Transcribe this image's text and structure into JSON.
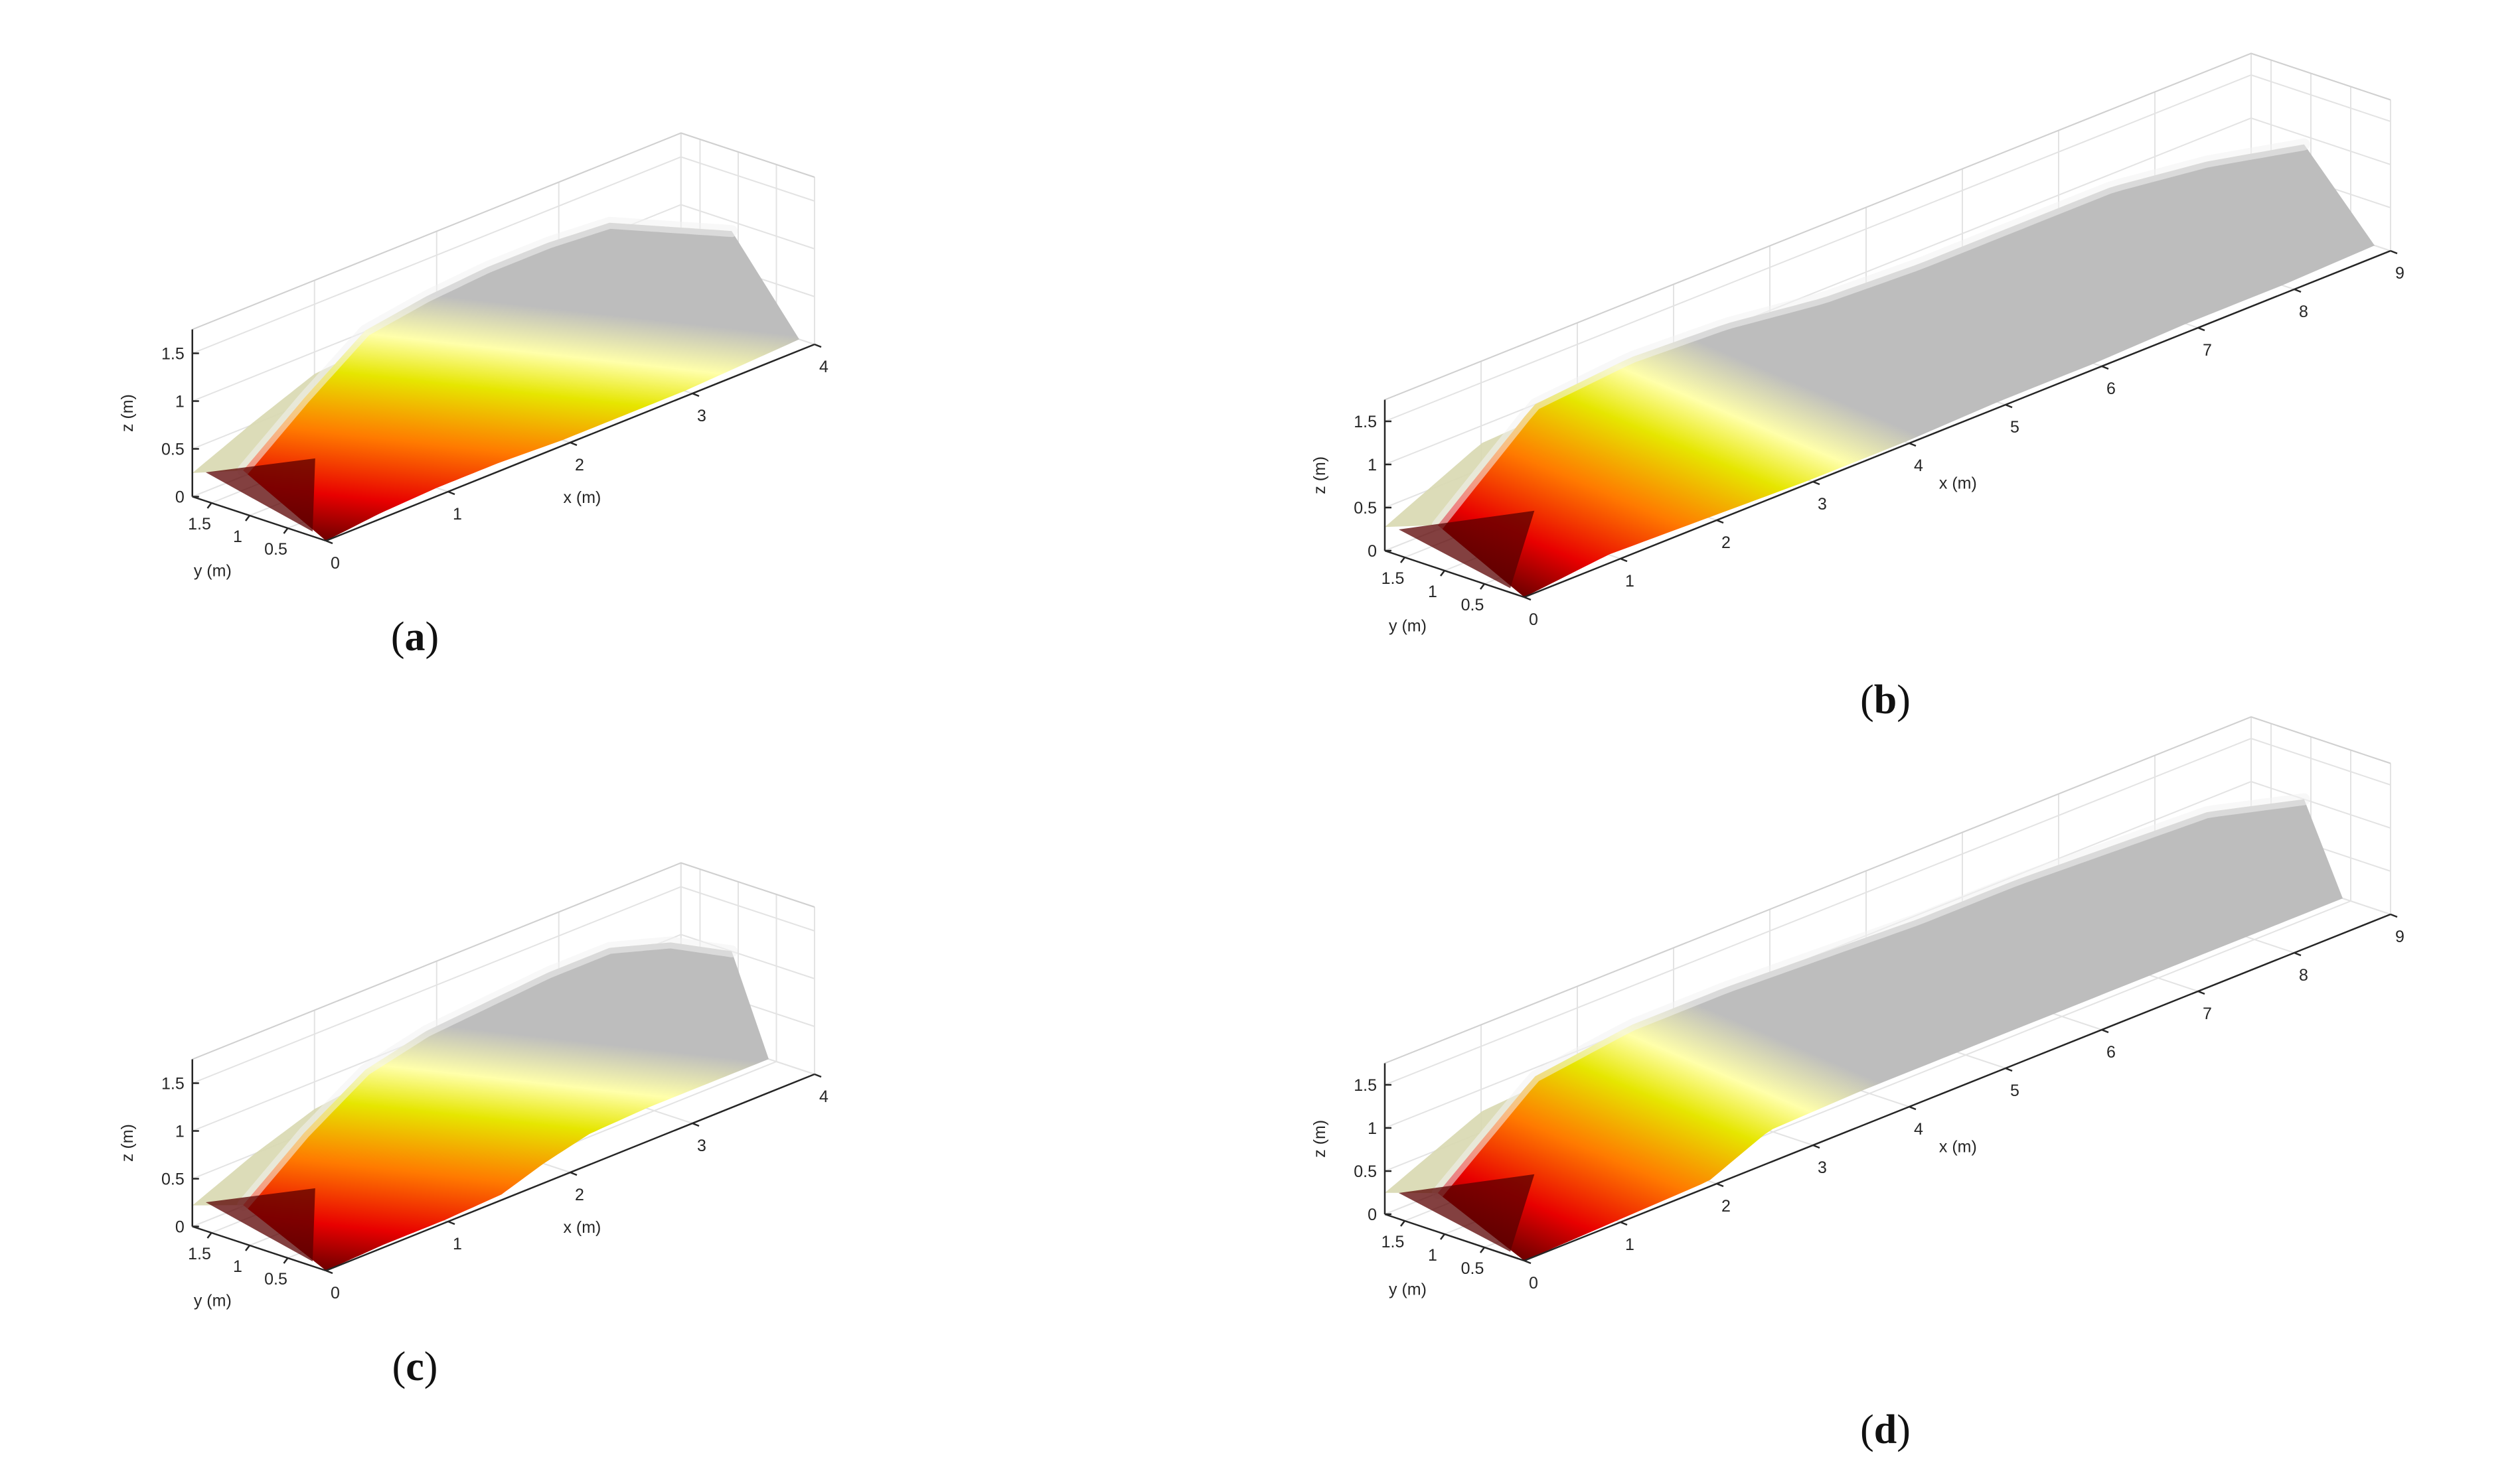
{
  "chart_data": [
    {
      "type": "surface",
      "caption": {
        "open": "(",
        "letter": "a",
        "close": ")"
      },
      "xlabel": "x (m)",
      "ylabel": "y (m)",
      "zlabel": "z (m)",
      "xlim": [
        0,
        4
      ],
      "ylim": [
        0,
        1.75
      ],
      "zlim": [
        0,
        1.75
      ],
      "xticks": [
        {
          "v": 0,
          "t": "0"
        },
        {
          "v": 1,
          "t": "1"
        },
        {
          "v": 2,
          "t": "2"
        },
        {
          "v": 3,
          "t": "3"
        },
        {
          "v": 4,
          "t": "4"
        }
      ],
      "yticks": [
        {
          "v": 0.5,
          "t": "0.5"
        },
        {
          "v": 1,
          "t": "1"
        },
        {
          "v": 1.5,
          "t": "1.5"
        }
      ],
      "zticks": [
        {
          "v": 0,
          "t": "0"
        },
        {
          "v": 0.5,
          "t": "0.5"
        },
        {
          "v": 1,
          "t": "1"
        },
        {
          "v": 1.5,
          "t": "1.5"
        }
      ],
      "grid": true,
      "colormap": [
        "#6e0000",
        "#e80000",
        "#ff7a00",
        "#e6e600",
        "#ffffaa",
        "#bdbdbd"
      ],
      "profile": {
        "x": [
          0,
          0.5,
          1,
          1.5,
          2,
          2.5,
          3,
          3.5,
          4
        ],
        "crest_height": [
          0.45,
          0.95,
          1.4,
          1.5,
          1.55,
          1.55,
          1.5,
          1.2,
          0.9
        ],
        "near_edge_y": [
          0.0,
          0.1,
          0.15,
          0.15,
          0.1,
          0.1,
          0.1,
          0.15,
          0.2
        ]
      }
    },
    {
      "type": "surface",
      "caption": {
        "open": "(",
        "letter": "b",
        "close": ")"
      },
      "xlabel": "x (m)",
      "ylabel": "y (m)",
      "zlabel": "z (m)",
      "xlim": [
        0,
        9
      ],
      "ylim": [
        0,
        1.75
      ],
      "zlim": [
        0,
        1.75
      ],
      "xticks": [
        {
          "v": 0,
          "t": "0"
        },
        {
          "v": 1,
          "t": "1"
        },
        {
          "v": 2,
          "t": "2"
        },
        {
          "v": 3,
          "t": "3"
        },
        {
          "v": 4,
          "t": "4"
        },
        {
          "v": 5,
          "t": "5"
        },
        {
          "v": 6,
          "t": "6"
        },
        {
          "v": 7,
          "t": "7"
        },
        {
          "v": 8,
          "t": "8"
        },
        {
          "v": 9,
          "t": "9"
        }
      ],
      "yticks": [
        {
          "v": 0.5,
          "t": "0.5"
        },
        {
          "v": 1,
          "t": "1"
        },
        {
          "v": 1.5,
          "t": "1.5"
        }
      ],
      "zticks": [
        {
          "v": 0,
          "t": "0"
        },
        {
          "v": 0.5,
          "t": "0.5"
        },
        {
          "v": 1,
          "t": "1"
        },
        {
          "v": 1.5,
          "t": "1.5"
        }
      ],
      "grid": true,
      "colormap": [
        "#6e0000",
        "#e80000",
        "#ff7a00",
        "#e6e600",
        "#ffffaa",
        "#bdbdbd"
      ],
      "profile": {
        "x": [
          0,
          1,
          2,
          3,
          4,
          5,
          6,
          7,
          8,
          9
        ],
        "crest_height": [
          0.5,
          1.45,
          1.55,
          1.5,
          1.35,
          1.3,
          1.3,
          1.3,
          1.15,
          0.9
        ],
        "near_edge_y": [
          0.0,
          0.15,
          0.1,
          0.05,
          0.05,
          0.1,
          0.1,
          0.15,
          0.15,
          0.2
        ]
      }
    },
    {
      "type": "surface",
      "caption": {
        "open": "(",
        "letter": "c",
        "close": ")"
      },
      "xlabel": "x (m)",
      "ylabel": "y (m)",
      "zlabel": "z (m)",
      "xlim": [
        0,
        4
      ],
      "ylim": [
        0,
        1.75
      ],
      "zlim": [
        0,
        1.75
      ],
      "xticks": [
        {
          "v": 0,
          "t": "0"
        },
        {
          "v": 1,
          "t": "1"
        },
        {
          "v": 2,
          "t": "2"
        },
        {
          "v": 3,
          "t": "3"
        },
        {
          "v": 4,
          "t": "4"
        }
      ],
      "yticks": [
        {
          "v": 0.5,
          "t": "0.5"
        },
        {
          "v": 1,
          "t": "1"
        },
        {
          "v": 1.5,
          "t": "1.5"
        }
      ],
      "zticks": [
        {
          "v": 0,
          "t": "0"
        },
        {
          "v": 0.5,
          "t": "0.5"
        },
        {
          "v": 1,
          "t": "1"
        },
        {
          "v": 1.5,
          "t": "1.5"
        }
      ],
      "grid": true,
      "colormap": [
        "#6e0000",
        "#e80000",
        "#ff7a00",
        "#e6e600",
        "#ffffaa",
        "#bdbdbd"
      ],
      "profile": {
        "x": [
          0,
          0.5,
          1,
          1.5,
          2,
          2.5,
          3,
          3.5,
          4
        ],
        "crest_height": [
          0.4,
          0.9,
          1.3,
          1.45,
          1.5,
          1.55,
          1.55,
          1.35,
          1.0
        ],
        "near_edge_y": [
          0.0,
          0.05,
          0.05,
          0.1,
          0.35,
          0.55,
          0.6,
          0.6,
          0.6
        ]
      }
    },
    {
      "type": "surface",
      "caption": {
        "open": "(",
        "letter": "d",
        "close": ")"
      },
      "xlabel": "x (m)",
      "ylabel": "y (m)",
      "zlabel": "z (m)",
      "xlim": [
        0,
        9
      ],
      "ylim": [
        0,
        1.75
      ],
      "zlim": [
        0,
        1.75
      ],
      "xticks": [
        {
          "v": 0,
          "t": "0"
        },
        {
          "v": 1,
          "t": "1"
        },
        {
          "v": 2,
          "t": "2"
        },
        {
          "v": 3,
          "t": "3"
        },
        {
          "v": 4,
          "t": "4"
        },
        {
          "v": 5,
          "t": "5"
        },
        {
          "v": 6,
          "t": "6"
        },
        {
          "v": 7,
          "t": "7"
        },
        {
          "v": 8,
          "t": "8"
        },
        {
          "v": 9,
          "t": "9"
        }
      ],
      "yticks": [
        {
          "v": 0.5,
          "t": "0.5"
        },
        {
          "v": 1,
          "t": "1"
        },
        {
          "v": 1.5,
          "t": "1.5"
        }
      ],
      "zticks": [
        {
          "v": 0,
          "t": "0"
        },
        {
          "v": 0.5,
          "t": "0.5"
        },
        {
          "v": 1,
          "t": "1"
        },
        {
          "v": 1.5,
          "t": "1.5"
        }
      ],
      "grid": true,
      "colormap": [
        "#6e0000",
        "#e80000",
        "#ff7a00",
        "#e6e600",
        "#ffffaa",
        "#bdbdbd"
      ],
      "profile": {
        "x": [
          0,
          1,
          2,
          3,
          4,
          5,
          6,
          7,
          8,
          9
        ],
        "crest_height": [
          0.45,
          1.35,
          1.5,
          1.5,
          1.45,
          1.4,
          1.4,
          1.35,
          1.3,
          1.0
        ],
        "near_edge_y": [
          0.0,
          0.05,
          0.1,
          0.55,
          0.6,
          0.6,
          0.6,
          0.6,
          0.6,
          0.6
        ]
      }
    }
  ]
}
